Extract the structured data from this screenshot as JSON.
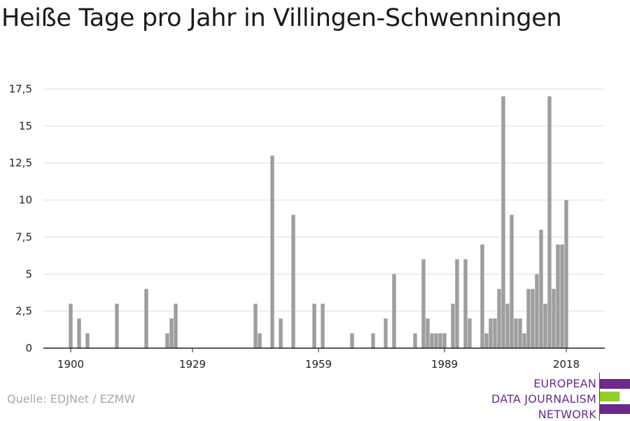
{
  "title": "Heiße Tage pro Jahr in Villingen-Schwenningen",
  "source": "Quelle: EDJNet / EZMW",
  "logo": {
    "line1": "EUROPEAN",
    "line2": "DATA JOURNALISM",
    "line3": "NETWORK"
  },
  "colors": {
    "bar": "#9e9e9e",
    "grid": "#dcdcdc",
    "axis": "#222222",
    "logo_purple": "#6b2a8c",
    "logo_green": "#8fd12a"
  },
  "chart_data": {
    "type": "bar",
    "title": "Heiße Tage pro Jahr in Villingen-Schwenningen",
    "xlabel": "",
    "ylabel": "",
    "xlim": [
      1900,
      2019
    ],
    "ylim": [
      0,
      17.5
    ],
    "yticks": [
      0,
      2.5,
      5,
      7.5,
      10,
      12.5,
      15,
      17.5
    ],
    "ytick_labels": [
      "0",
      "2,5",
      "5",
      "7,5",
      "10",
      "12,5",
      "15",
      "17,5"
    ],
    "xticks": [
      1900,
      1929,
      1959,
      1989,
      2018
    ],
    "xtick_labels": [
      "1900",
      "1929",
      "1959",
      "1989",
      "2018"
    ],
    "grid": true,
    "x": [
      1900,
      1902,
      1904,
      1911,
      1918,
      1923,
      1924,
      1925,
      1944,
      1945,
      1948,
      1950,
      1953,
      1958,
      1960,
      1967,
      1972,
      1975,
      1977,
      1982,
      1984,
      1985,
      1986,
      1987,
      1988,
      1989,
      1991,
      1992,
      1994,
      1995,
      1998,
      1999,
      2000,
      2001,
      2002,
      2003,
      2004,
      2005,
      2006,
      2007,
      2008,
      2009,
      2010,
      2011,
      2012,
      2013,
      2014,
      2015,
      2016,
      2017,
      2018
    ],
    "values": [
      3,
      2,
      1,
      3,
      4,
      1,
      2,
      3,
      3,
      1,
      13,
      2,
      9,
      3,
      3,
      1,
      1,
      2,
      5,
      1,
      6,
      2,
      1,
      1,
      1,
      1,
      3,
      6,
      6,
      2,
      7,
      1,
      2,
      2,
      4,
      17,
      3,
      9,
      2,
      2,
      1,
      4,
      4,
      5,
      8,
      3,
      17,
      4,
      7,
      7,
      10
    ]
  }
}
